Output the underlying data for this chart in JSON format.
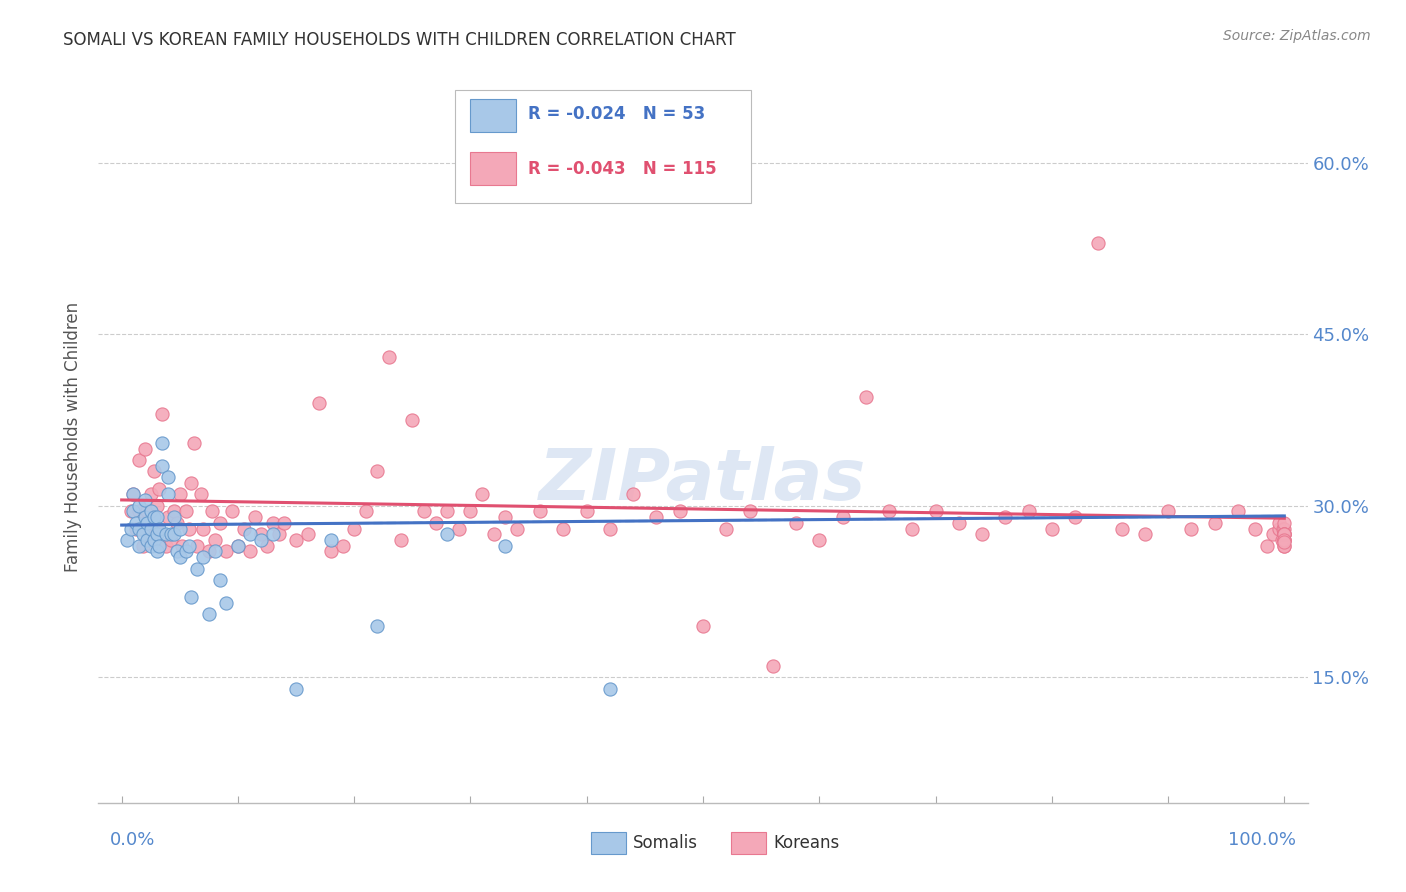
{
  "title": "SOMALI VS KOREAN FAMILY HOUSEHOLDS WITH CHILDREN CORRELATION CHART",
  "source": "Source: ZipAtlas.com",
  "ylabel": "Family Households with Children",
  "ytick_labels": [
    "15.0%",
    "30.0%",
    "45.0%",
    "60.0%"
  ],
  "ytick_values": [
    0.15,
    0.3,
    0.45,
    0.6
  ],
  "xlim": [
    -0.02,
    1.02
  ],
  "ylim": [
    0.04,
    0.68
  ],
  "somali_color": "#A8C8E8",
  "korean_color": "#F4A8B8",
  "somali_edge_color": "#6699CC",
  "korean_edge_color": "#E87890",
  "somali_line_color": "#4472C4",
  "korean_line_color": "#E05070",
  "dashed_line_color": "#A8C8E8",
  "watermark": "ZIPatlas",
  "watermark_color": "#C8D8EE",
  "bg_color": "#FFFFFF",
  "grid_color": "#CCCCCC",
  "title_color": "#333333",
  "source_color": "#888888",
  "axis_label_color": "#5588CC",
  "somali_x": [
    0.005,
    0.008,
    0.01,
    0.01,
    0.012,
    0.015,
    0.015,
    0.015,
    0.018,
    0.02,
    0.02,
    0.022,
    0.022,
    0.025,
    0.025,
    0.025,
    0.028,
    0.028,
    0.03,
    0.03,
    0.03,
    0.032,
    0.032,
    0.035,
    0.035,
    0.038,
    0.04,
    0.04,
    0.042,
    0.045,
    0.045,
    0.048,
    0.05,
    0.05,
    0.055,
    0.058,
    0.06,
    0.065,
    0.07,
    0.075,
    0.08,
    0.085,
    0.09,
    0.1,
    0.11,
    0.12,
    0.13,
    0.15,
    0.18,
    0.22,
    0.28,
    0.33,
    0.42
  ],
  "somali_y": [
    0.27,
    0.28,
    0.295,
    0.31,
    0.285,
    0.265,
    0.28,
    0.3,
    0.275,
    0.29,
    0.305,
    0.27,
    0.285,
    0.265,
    0.28,
    0.295,
    0.27,
    0.29,
    0.26,
    0.275,
    0.29,
    0.265,
    0.28,
    0.355,
    0.335,
    0.275,
    0.31,
    0.325,
    0.275,
    0.29,
    0.275,
    0.26,
    0.28,
    0.255,
    0.26,
    0.265,
    0.22,
    0.245,
    0.255,
    0.205,
    0.26,
    0.235,
    0.215,
    0.265,
    0.275,
    0.27,
    0.275,
    0.14,
    0.27,
    0.195,
    0.275,
    0.265,
    0.14
  ],
  "korean_x": [
    0.008,
    0.01,
    0.012,
    0.015,
    0.015,
    0.018,
    0.02,
    0.02,
    0.022,
    0.025,
    0.025,
    0.028,
    0.03,
    0.03,
    0.032,
    0.035,
    0.038,
    0.04,
    0.042,
    0.045,
    0.048,
    0.05,
    0.052,
    0.055,
    0.058,
    0.06,
    0.062,
    0.065,
    0.068,
    0.07,
    0.075,
    0.078,
    0.08,
    0.085,
    0.09,
    0.095,
    0.1,
    0.105,
    0.11,
    0.115,
    0.12,
    0.125,
    0.13,
    0.135,
    0.14,
    0.15,
    0.16,
    0.17,
    0.18,
    0.19,
    0.2,
    0.21,
    0.22,
    0.23,
    0.24,
    0.25,
    0.26,
    0.27,
    0.28,
    0.29,
    0.3,
    0.31,
    0.32,
    0.33,
    0.34,
    0.36,
    0.38,
    0.4,
    0.42,
    0.44,
    0.46,
    0.48,
    0.5,
    0.52,
    0.54,
    0.56,
    0.58,
    0.6,
    0.62,
    0.64,
    0.66,
    0.68,
    0.7,
    0.72,
    0.74,
    0.76,
    0.78,
    0.8,
    0.82,
    0.84,
    0.86,
    0.88,
    0.9,
    0.92,
    0.94,
    0.96,
    0.975,
    0.985,
    0.99,
    0.995,
    0.995,
    0.998,
    0.999,
    1.0,
    1.0,
    1.0,
    1.0,
    1.0,
    1.0,
    1.0,
    1.0,
    1.0,
    1.0,
    1.0,
    1.0
  ],
  "korean_y": [
    0.295,
    0.31,
    0.28,
    0.295,
    0.34,
    0.265,
    0.28,
    0.35,
    0.295,
    0.27,
    0.31,
    0.33,
    0.28,
    0.3,
    0.315,
    0.38,
    0.265,
    0.29,
    0.27,
    0.295,
    0.285,
    0.31,
    0.265,
    0.295,
    0.28,
    0.32,
    0.355,
    0.265,
    0.31,
    0.28,
    0.26,
    0.295,
    0.27,
    0.285,
    0.26,
    0.295,
    0.265,
    0.28,
    0.26,
    0.29,
    0.275,
    0.265,
    0.285,
    0.275,
    0.285,
    0.27,
    0.275,
    0.39,
    0.26,
    0.265,
    0.28,
    0.295,
    0.33,
    0.43,
    0.27,
    0.375,
    0.295,
    0.285,
    0.295,
    0.28,
    0.295,
    0.31,
    0.275,
    0.29,
    0.28,
    0.295,
    0.28,
    0.295,
    0.28,
    0.31,
    0.29,
    0.295,
    0.195,
    0.28,
    0.295,
    0.16,
    0.285,
    0.27,
    0.29,
    0.395,
    0.295,
    0.28,
    0.295,
    0.285,
    0.275,
    0.29,
    0.295,
    0.28,
    0.29,
    0.53,
    0.28,
    0.275,
    0.295,
    0.28,
    0.285,
    0.295,
    0.28,
    0.265,
    0.275,
    0.28,
    0.285,
    0.27,
    0.28,
    0.275,
    0.28,
    0.285,
    0.27,
    0.275,
    0.265,
    0.27,
    0.275,
    0.265,
    0.275,
    0.27,
    0.268
  ]
}
